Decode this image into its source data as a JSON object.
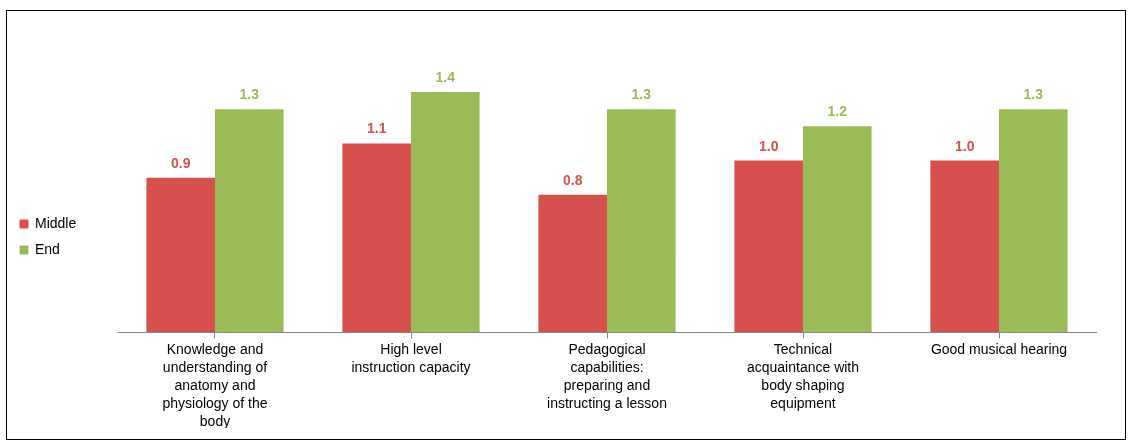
{
  "chart_data": {
    "type": "bar",
    "categories": [
      "Knowledge and understanding of anatomy and physiology of the body",
      "High level instruction capacity",
      "Pedagogical capabilities: preparing and instructing a lesson",
      "Technical acquaintance with body shaping equipment",
      "Good musical hearing"
    ],
    "series": [
      {
        "name": "Middle",
        "color": "#d6504e",
        "values": [
          0.9,
          1.1,
          0.8,
          1.0,
          1.0
        ],
        "value_labels": [
          "0.9",
          "1.1",
          "0.8",
          "1.0",
          "1.0"
        ]
      },
      {
        "name": "End",
        "color": "#9bbb59",
        "values": [
          1.3,
          1.4,
          1.3,
          1.2,
          1.3
        ],
        "value_labels": [
          "1.3",
          "1.4",
          "1.3",
          "1.2",
          "1.3"
        ]
      }
    ],
    "legend": "left"
  }
}
